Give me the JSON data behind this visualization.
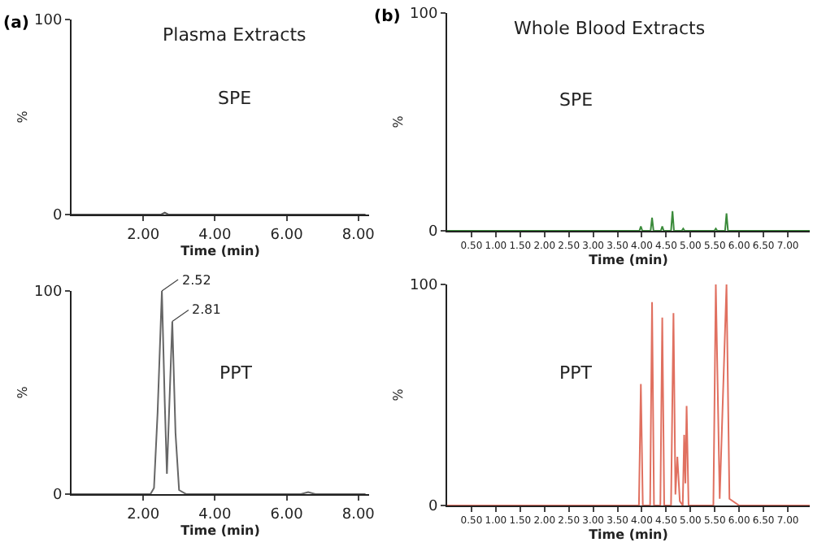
{
  "chart_data": [
    {
      "type": "line",
      "title": "(a)",
      "subtitle": "Plasma Extracts",
      "xlabel": "Time (min)",
      "ylabel": "%",
      "annotations": [
        "SPE"
      ],
      "x": [
        0,
        2.3,
        2.5,
        2.6,
        2.7,
        2.9,
        8.2
      ],
      "series": [
        {
          "color": "#555555",
          "values": [
            0,
            0,
            0,
            1,
            0,
            0,
            0
          ]
        }
      ],
      "xlim": [
        0,
        8.3
      ],
      "ylim": [
        0,
        100
      ],
      "xticks": [
        {
          "value": 2,
          "label": "2.00"
        },
        {
          "value": 4,
          "label": "4.00"
        },
        {
          "value": 6,
          "label": "6.00"
        },
        {
          "value": 8,
          "label": "8.00"
        }
      ],
      "yticks": [
        0,
        100
      ]
    },
    {
      "type": "line",
      "title": "(b)",
      "subtitle": "Whole Blood Extracts",
      "xlabel": "Time (min)",
      "ylabel": "%",
      "annotations": [
        "SPE"
      ],
      "x": [
        0,
        3.95,
        3.98,
        4.01,
        4.18,
        4.21,
        4.24,
        4.39,
        4.42,
        4.45,
        4.6,
        4.63,
        4.66,
        4.82,
        4.85,
        4.88,
        5.49,
        5.52,
        5.55,
        5.71,
        5.74,
        5.77,
        7.45
      ],
      "series": [
        {
          "color": "#3a8a3a",
          "values": [
            0,
            0,
            2,
            0,
            0,
            6,
            0,
            0,
            2,
            0,
            0,
            9,
            0,
            0,
            1,
            0,
            0,
            1,
            0,
            0,
            8,
            0,
            0
          ]
        }
      ],
      "xlim": [
        0,
        7.45
      ],
      "ylim": [
        0,
        100
      ],
      "xticks": [
        {
          "value": 0.5,
          "label": "0.50"
        },
        {
          "value": 1,
          "label": "1.00"
        },
        {
          "value": 1.5,
          "label": "1.50"
        },
        {
          "value": 2,
          "label": "2.00"
        },
        {
          "value": 2.5,
          "label": "2.50"
        },
        {
          "value": 3,
          "label": "3.00"
        },
        {
          "value": 3.5,
          "label": "3.50"
        },
        {
          "value": 4,
          "label": "4.00"
        },
        {
          "value": 4.5,
          "label": "4.50"
        },
        {
          "value": 5,
          "label": "5.00"
        },
        {
          "value": 5.5,
          "label": "5.50"
        },
        {
          "value": 6,
          "label": "6.00"
        },
        {
          "value": 6.5,
          "label": "6.50"
        },
        {
          "value": 7,
          "label": "7.00"
        }
      ],
      "yticks": [
        0,
        100
      ]
    },
    {
      "type": "line",
      "xlabel": "Time (min)",
      "ylabel": "%",
      "annotations": [
        "PPT",
        {
          "text": "2.52",
          "x": 2.52,
          "y": 100
        },
        {
          "text": "2.81",
          "x": 2.81,
          "y": 85
        }
      ],
      "x": [
        0,
        2.2,
        2.3,
        2.4,
        2.52,
        2.6,
        2.66,
        2.72,
        2.81,
        2.9,
        3.0,
        3.2,
        6.4,
        6.6,
        6.8,
        8.2
      ],
      "series": [
        {
          "color": "#666666",
          "values": [
            0,
            0,
            3,
            40,
            100,
            45,
            10,
            40,
            85,
            30,
            2,
            0,
            0,
            1,
            0,
            0
          ]
        }
      ],
      "xlim": [
        0,
        8.3
      ],
      "ylim": [
        0,
        100
      ],
      "xticks": [
        {
          "value": 2,
          "label": "2.00"
        },
        {
          "value": 4,
          "label": "4.00"
        },
        {
          "value": 6,
          "label": "6.00"
        },
        {
          "value": 8,
          "label": "8.00"
        }
      ],
      "yticks": [
        0,
        100
      ]
    },
    {
      "type": "line",
      "xlabel": "Time (min)",
      "ylabel": "%",
      "annotations": [
        "PPT"
      ],
      "x": [
        0,
        3.94,
        3.98,
        4.02,
        4.17,
        4.21,
        4.25,
        4.38,
        4.42,
        4.46,
        4.6,
        4.65,
        4.69,
        4.73,
        4.78,
        4.84,
        4.87,
        4.895,
        4.92,
        4.96,
        5.1,
        5.47,
        5.52,
        5.6,
        5.74,
        5.8,
        6.0,
        7.45
      ],
      "series": [
        {
          "color": "#e07060",
          "values": [
            0,
            0,
            55,
            0,
            0,
            92,
            0,
            0,
            85,
            0,
            0,
            87,
            5,
            22,
            2,
            0,
            32,
            10,
            45,
            0,
            0,
            0,
            100,
            3,
            100,
            3,
            0,
            0
          ]
        }
      ],
      "xlim": [
        0,
        7.45
      ],
      "ylim": [
        0,
        100
      ],
      "xticks": [
        {
          "value": 0.5,
          "label": "0.50"
        },
        {
          "value": 1,
          "label": "1.00"
        },
        {
          "value": 1.5,
          "label": "1.50"
        },
        {
          "value": 2,
          "label": "2.00"
        },
        {
          "value": 2.5,
          "label": "2.50"
        },
        {
          "value": 3,
          "label": "3.00"
        },
        {
          "value": 3.5,
          "label": "3.50"
        },
        {
          "value": 4,
          "label": "4.00"
        },
        {
          "value": 4.5,
          "label": "4.50"
        },
        {
          "value": 5,
          "label": "5.00"
        },
        {
          "value": 5.5,
          "label": "5.50"
        },
        {
          "value": 6,
          "label": "6.00"
        },
        {
          "value": 6.5,
          "label": "6.50"
        },
        {
          "value": 7,
          "label": "7.00"
        }
      ],
      "yticks": [
        0,
        100
      ]
    }
  ]
}
